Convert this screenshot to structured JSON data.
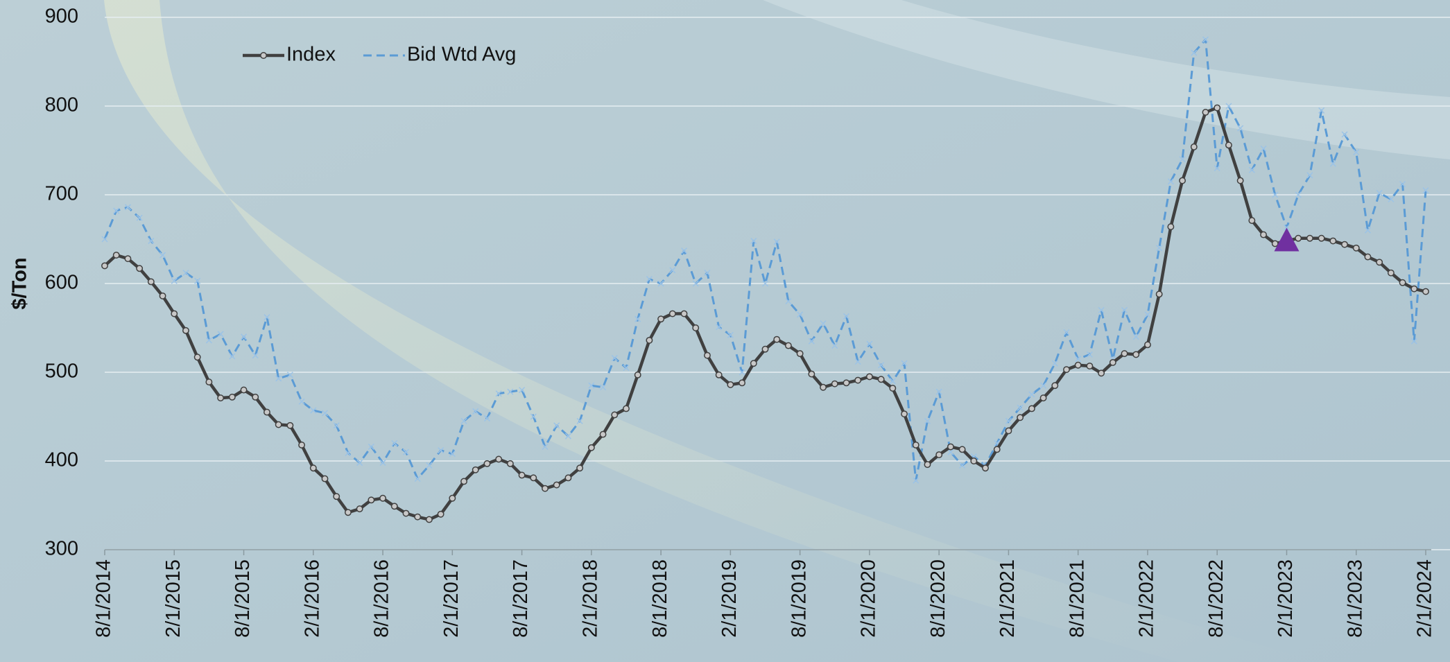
{
  "chart_data": {
    "type": "line",
    "y_label": "$/Ton",
    "categories": [
      "8/1/2014",
      null,
      null,
      null,
      null,
      null,
      "2/1/2015",
      null,
      null,
      null,
      null,
      null,
      "8/1/2015",
      null,
      null,
      null,
      null,
      null,
      "2/1/2016",
      null,
      null,
      null,
      null,
      null,
      "8/1/2016",
      null,
      null,
      null,
      null,
      null,
      "2/1/2017",
      null,
      null,
      null,
      null,
      null,
      "8/1/2017",
      null,
      null,
      null,
      null,
      null,
      "2/1/2018",
      null,
      null,
      null,
      null,
      null,
      "8/1/2018",
      null,
      null,
      null,
      null,
      null,
      "2/1/2019",
      null,
      null,
      null,
      null,
      null,
      "8/1/2019",
      null,
      null,
      null,
      null,
      null,
      "2/1/2020",
      null,
      null,
      null,
      null,
      null,
      "8/1/2020",
      null,
      null,
      null,
      null,
      null,
      "2/1/2021",
      null,
      null,
      null,
      null,
      null,
      "8/1/2021",
      null,
      null,
      null,
      null,
      null,
      "2/1/2022",
      null,
      null,
      null,
      null,
      null,
      "8/1/2022",
      null,
      null,
      null,
      null,
      null,
      "2/1/2023",
      null,
      null,
      null,
      null,
      null,
      "8/1/2023",
      null,
      null,
      null,
      null,
      null,
      "2/1/2024"
    ],
    "series": [
      {
        "name": "Index",
        "color": "#404040",
        "style": "solid",
        "values": [
          620,
          632,
          628,
          617,
          602,
          586,
          566,
          547,
          517,
          489,
          471,
          472,
          480,
          472,
          455,
          441,
          440,
          418,
          392,
          380,
          360,
          342,
          346,
          356,
          358,
          349,
          341,
          337,
          334,
          340,
          358,
          377,
          390,
          397,
          402,
          397,
          384,
          381,
          369,
          373,
          381,
          392,
          415,
          430,
          452,
          459,
          497,
          536,
          560,
          566,
          566,
          550,
          519,
          497,
          486,
          488,
          510,
          526,
          537,
          530,
          521,
          498,
          483,
          487,
          488,
          491,
          495,
          492,
          482,
          453,
          418,
          396,
          407,
          416,
          413,
          400,
          392,
          413,
          434,
          449,
          459,
          471,
          485,
          503,
          508,
          507,
          499,
          511,
          521,
          520,
          531,
          588,
          664,
          716,
          754,
          793,
          798,
          756,
          716,
          671,
          655,
          645,
          648,
          651,
          651,
          651,
          648,
          644,
          640,
          630,
          624,
          612,
          601,
          594,
          591
        ]
      },
      {
        "name": "Bid Wtd Avg",
        "color": "#5b9bd5",
        "style": "dashed",
        "values": [
          650,
          682,
          686,
          674,
          648,
          632,
          603,
          612,
          603,
          536,
          543,
          518,
          540,
          519,
          562,
          493,
          497,
          467,
          457,
          454,
          440,
          409,
          398,
          416,
          398,
          420,
          410,
          380,
          395,
          412,
          408,
          445,
          456,
          448,
          476,
          478,
          480,
          450,
          416,
          440,
          428,
          445,
          485,
          483,
          516,
          505,
          560,
          605,
          600,
          615,
          637,
          600,
          612,
          551,
          542,
          500,
          648,
          600,
          647,
          580,
          565,
          535,
          555,
          530,
          563,
          512,
          532,
          508,
          490,
          510,
          378,
          445,
          478,
          410,
          395,
          405,
          395,
          420,
          445,
          460,
          475,
          485,
          510,
          545,
          515,
          520,
          570,
          515,
          570,
          540,
          565,
          640,
          715,
          740,
          860,
          875,
          730,
          800,
          775,
          728,
          752,
          700,
          663,
          700,
          722,
          795,
          735,
          768,
          748,
          660,
          702,
          695,
          712,
          535,
          705
        ]
      }
    ],
    "highlight": {
      "x": "2/1/2023",
      "y": 648,
      "color": "#7030a0"
    },
    "ylim": [
      300,
      900
    ],
    "yticks": [
      300,
      400,
      500,
      600,
      700,
      800,
      900
    ],
    "grid": true,
    "legend": "top-left"
  }
}
